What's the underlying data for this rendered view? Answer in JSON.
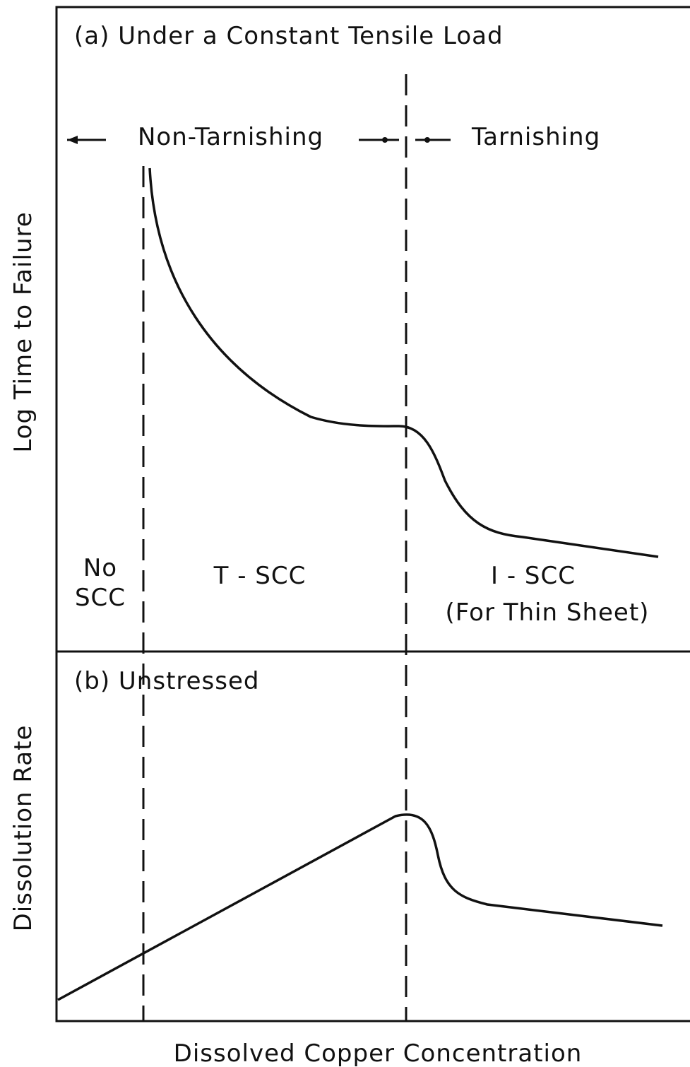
{
  "panels": [
    {
      "title": "(a) Under a Constant Tensile Load",
      "y_label": "Log Time to Failure",
      "regimes": {
        "left": "Non-Tarnishing",
        "right": "Tarnishing"
      },
      "zones": {
        "no_scc": [
          "No",
          "SCC"
        ],
        "t_scc": "T - SCC",
        "i_scc": "I - SCC",
        "i_scc_note": "(For Thin Sheet)"
      }
    },
    {
      "title": "(b) Unstressed",
      "y_label": "Dissolution Rate"
    }
  ],
  "x_label": "Dissolved Copper Concentration"
}
